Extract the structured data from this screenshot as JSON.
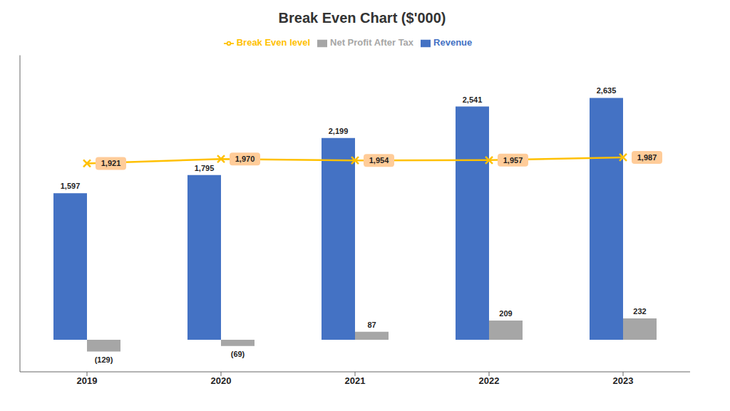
{
  "chart_data": {
    "type": "bar",
    "title": "Break Even Chart ($'000)",
    "categories": [
      "2019",
      "2020",
      "2021",
      "2022",
      "2023"
    ],
    "series": [
      {
        "name": "Revenue",
        "type": "bar",
        "color": "#4472C4",
        "values": [
          1597,
          1795,
          2199,
          2541,
          2635
        ],
        "value_labels": [
          "1,597",
          "1,795",
          "2,199",
          "2,541",
          "2,635"
        ]
      },
      {
        "name": "Net Profit After Tax",
        "type": "bar",
        "color": "#A6A6A6",
        "values": [
          -129,
          -69,
          87,
          209,
          232
        ],
        "value_labels": [
          "(129)",
          "(69)",
          "87",
          "209",
          "232"
        ]
      },
      {
        "name": "Break Even level",
        "type": "line",
        "color": "#FFC000",
        "marker": "x",
        "values": [
          1921,
          1970,
          1954,
          1957,
          1987
        ],
        "value_labels": [
          "1,921",
          "1,970",
          "1,954",
          "1,957",
          "1,987"
        ]
      }
    ],
    "ylim": [
      -350,
      3100
    ],
    "grid": false,
    "legend": "top",
    "data_labels": true,
    "tick_labels": "x"
  }
}
